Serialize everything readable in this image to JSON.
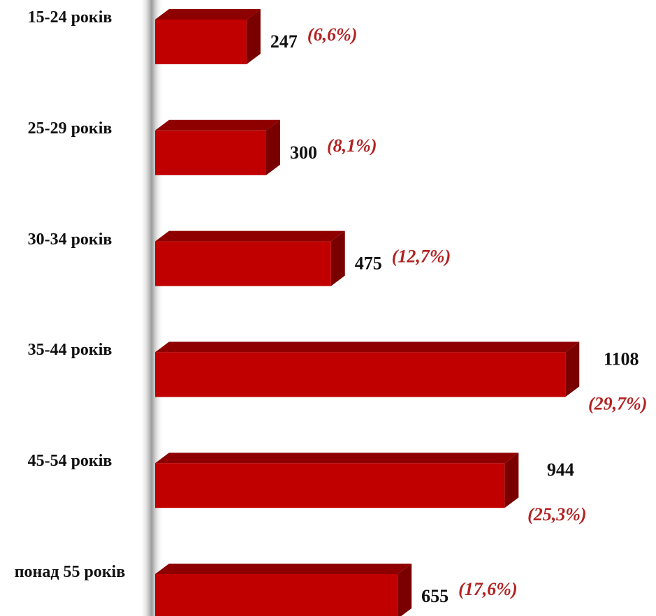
{
  "chart_data": {
    "type": "bar",
    "orientation": "horizontal",
    "categories": [
      "15-24 років",
      "25-29 років",
      "30-34 років",
      "35-44 років",
      "45-54 років",
      "понад 55 років"
    ],
    "values": [
      247,
      300,
      475,
      1108,
      944,
      655
    ],
    "percent": [
      6.6,
      8.1,
      12.7,
      29.7,
      25.3,
      17.6
    ],
    "percent_labels": [
      "(6,6%)",
      "(8,1%)",
      "(12,7%)",
      "(29,7%)",
      "(25,3%)",
      "(17,6%)"
    ],
    "color": "#c00000",
    "percent_color": "#b22222",
    "xlim": [
      0,
      1200
    ]
  }
}
